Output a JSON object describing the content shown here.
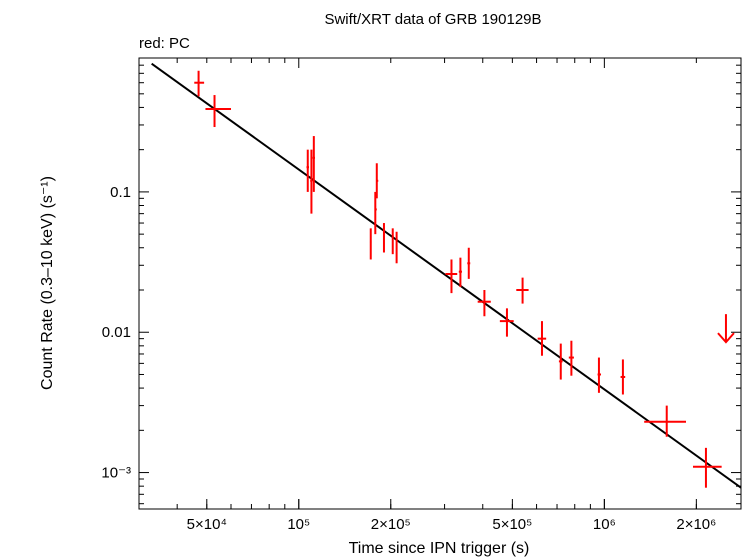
{
  "chart_data": {
    "type": "scatter",
    "title": "Swift/XRT data of GRB 190129B",
    "legend": "red: PC",
    "xlabel": "Time since IPN trigger (s)",
    "ylabel": "Count Rate (0.3–10 keV) (s⁻¹)",
    "x_scale": "log",
    "y_scale": "log",
    "xlim": [
      30000,
      2800000
    ],
    "ylim": [
      0.00055,
      0.9
    ],
    "x_ticks": [
      {
        "value": 50000,
        "label": "5×10⁴"
      },
      {
        "value": 100000,
        "label": "10⁵"
      },
      {
        "value": 200000,
        "label": "2×10⁵"
      },
      {
        "value": 500000,
        "label": "5×10⁵"
      },
      {
        "value": 1000000,
        "label": "10⁶"
      },
      {
        "value": 2000000,
        "label": "2×10⁶"
      }
    ],
    "y_ticks": [
      {
        "value": 0.1,
        "label": "0.1"
      },
      {
        "value": 0.01,
        "label": "0.01"
      },
      {
        "value": 0.001,
        "label": "10⁻³"
      }
    ],
    "series": [
      {
        "name": "PC",
        "color": "#ff0000",
        "points": [
          {
            "x": 47000,
            "xlo": 45500,
            "xhi": 49000,
            "y": 0.6,
            "ylo": 0.48,
            "yhi": 0.73
          },
          {
            "x": 53000,
            "xlo": 49500,
            "xhi": 60000,
            "y": 0.39,
            "ylo": 0.29,
            "yhi": 0.49
          },
          {
            "x": 107000,
            "xlo": 106000,
            "xhi": 108000,
            "y": 0.15,
            "ylo": 0.1,
            "yhi": 0.2
          },
          {
            "x": 110000,
            "xlo": 109000,
            "xhi": 111000,
            "y": 0.12,
            "ylo": 0.07,
            "yhi": 0.2
          },
          {
            "x": 112000,
            "xlo": 111000,
            "xhi": 113000,
            "y": 0.175,
            "ylo": 0.1,
            "yhi": 0.25
          },
          {
            "x": 172000,
            "xlo": 171000,
            "xhi": 173000,
            "y": 0.044,
            "ylo": 0.033,
            "yhi": 0.055
          },
          {
            "x": 178000,
            "xlo": 177000,
            "xhi": 180000,
            "y": 0.075,
            "ylo": 0.05,
            "yhi": 0.1
          },
          {
            "x": 180000,
            "xlo": 179000,
            "xhi": 182000,
            "y": 0.12,
            "ylo": 0.09,
            "yhi": 0.16
          },
          {
            "x": 190000,
            "xlo": 189000,
            "xhi": 191000,
            "y": 0.048,
            "ylo": 0.037,
            "yhi": 0.06
          },
          {
            "x": 203000,
            "xlo": 202000,
            "xhi": 204000,
            "y": 0.046,
            "ylo": 0.036,
            "yhi": 0.055
          },
          {
            "x": 209000,
            "xlo": 208000,
            "xhi": 210000,
            "y": 0.04,
            "ylo": 0.031,
            "yhi": 0.052
          },
          {
            "x": 316000,
            "xlo": 302000,
            "xhi": 330000,
            "y": 0.026,
            "ylo": 0.019,
            "yhi": 0.033
          },
          {
            "x": 338000,
            "xlo": 334000,
            "xhi": 342000,
            "y": 0.027,
            "ylo": 0.021,
            "yhi": 0.034
          },
          {
            "x": 360000,
            "xlo": 356000,
            "xhi": 364000,
            "y": 0.031,
            "ylo": 0.024,
            "yhi": 0.04
          },
          {
            "x": 405000,
            "xlo": 385000,
            "xhi": 425000,
            "y": 0.0165,
            "ylo": 0.013,
            "yhi": 0.02
          },
          {
            "x": 480000,
            "xlo": 455000,
            "xhi": 505000,
            "y": 0.012,
            "ylo": 0.0093,
            "yhi": 0.0148
          },
          {
            "x": 540000,
            "xlo": 515000,
            "xhi": 565000,
            "y": 0.02,
            "ylo": 0.016,
            "yhi": 0.0245
          },
          {
            "x": 625000,
            "xlo": 605000,
            "xhi": 645000,
            "y": 0.009,
            "ylo": 0.0068,
            "yhi": 0.012
          },
          {
            "x": 720000,
            "xlo": 710000,
            "xhi": 730000,
            "y": 0.0062,
            "ylo": 0.0046,
            "yhi": 0.0083
          },
          {
            "x": 780000,
            "xlo": 765000,
            "xhi": 795000,
            "y": 0.0066,
            "ylo": 0.0049,
            "yhi": 0.0087
          },
          {
            "x": 960000,
            "xlo": 950000,
            "xhi": 975000,
            "y": 0.005,
            "ylo": 0.0037,
            "yhi": 0.0066
          },
          {
            "x": 1150000,
            "xlo": 1130000,
            "xhi": 1170000,
            "y": 0.0048,
            "ylo": 0.0036,
            "yhi": 0.0064
          },
          {
            "x": 1600000,
            "xlo": 1350000,
            "xhi": 1850000,
            "y": 0.0023,
            "ylo": 0.0018,
            "yhi": 0.003
          },
          {
            "x": 2150000,
            "xlo": 1950000,
            "xhi": 2420000,
            "y": 0.0011,
            "ylo": 0.00078,
            "yhi": 0.0015
          }
        ],
        "upper_limits": [
          {
            "x": 2500000,
            "y": 0.0085
          }
        ]
      }
    ],
    "fit_line": {
      "color": "#000000",
      "points": [
        {
          "x": 33000,
          "y": 0.82
        },
        {
          "x": 2800000,
          "y": 0.00078
        }
      ]
    }
  }
}
